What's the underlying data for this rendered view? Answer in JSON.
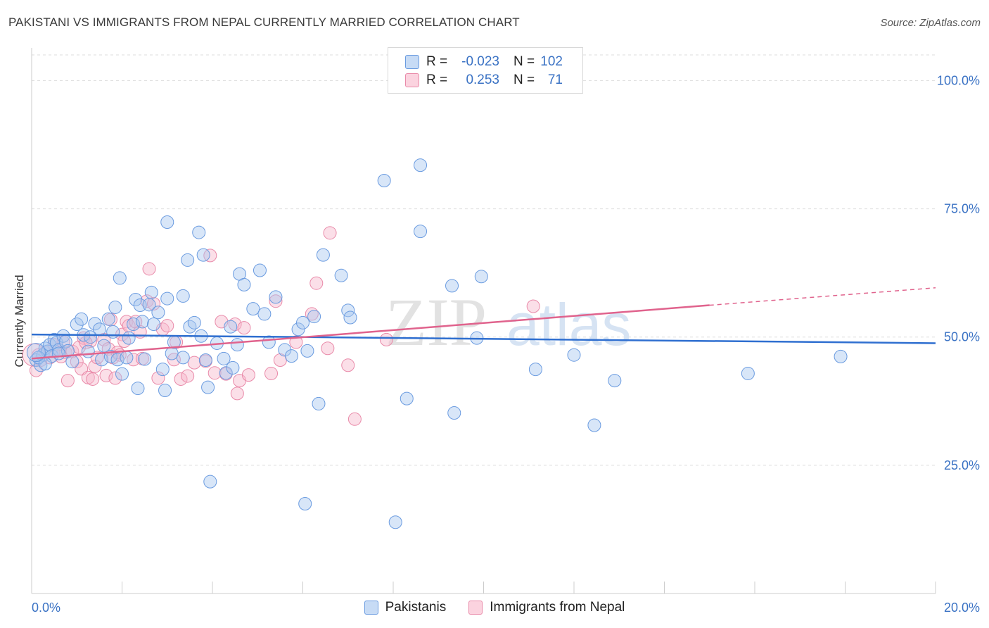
{
  "title": "PAKISTANI VS IMMIGRANTS FROM NEPAL CURRENTLY MARRIED CORRELATION CHART",
  "source": "Source: ZipAtlas.com",
  "watermark": {
    "zip": "ZIP",
    "atlas": "atlas"
  },
  "legend": {
    "rows": [
      {
        "r_label": "R =",
        "r_value": "-0.023",
        "n_label": "N =",
        "n_value": "102"
      },
      {
        "r_label": "R =",
        "r_value": "0.253",
        "n_label": "N =",
        "n_value": "71"
      }
    ]
  },
  "colors": {
    "blue_fill": "#a9c8f0",
    "blue_stroke": "#6a9be0",
    "blue_line": "#2f6fd0",
    "pink_fill": "#f7b9cc",
    "pink_stroke": "#e98aa9",
    "pink_line": "#e0638d",
    "axis_text": "#3a72c4",
    "grid": "#dddddd"
  },
  "chart_data": {
    "type": "scatter",
    "title": "PAKISTANI VS IMMIGRANTS FROM NEPAL CURRENTLY MARRIED CORRELATION CHART",
    "xlabel": "",
    "ylabel": "Currently Married",
    "xlim": [
      0,
      20
    ],
    "ylim": [
      0,
      105
    ],
    "x_tick_labels": [
      "0.0%",
      "20.0%"
    ],
    "y_ticks": [
      25,
      50,
      75,
      100
    ],
    "y_tick_labels": [
      "25.0%",
      "50.0%",
      "75.0%",
      "100.0%"
    ],
    "grid": true,
    "legend_position": "top-center",
    "series": [
      {
        "name": "Pakistanis",
        "color": "#a9c8f0",
        "trend": {
          "x": [
            0,
            20
          ],
          "y": [
            50.5,
            48.8
          ]
        },
        "points": [
          [
            0.1,
            45.5
          ],
          [
            0.2,
            44.5
          ],
          [
            0.25,
            46.5
          ],
          [
            0.3,
            47.8
          ],
          [
            0.35,
            47.2
          ],
          [
            0.4,
            48.5
          ],
          [
            0.45,
            46.3
          ],
          [
            0.5,
            49.5
          ],
          [
            0.55,
            48.9
          ],
          [
            0.6,
            47.5
          ],
          [
            0.7,
            50.2
          ],
          [
            0.75,
            49.1
          ],
          [
            0.8,
            47.3
          ],
          [
            0.9,
            45.2
          ],
          [
            1.0,
            52.5
          ],
          [
            1.1,
            53.5
          ],
          [
            1.15,
            50.4
          ],
          [
            1.25,
            47.2
          ],
          [
            1.4,
            52.6
          ],
          [
            1.5,
            51.5
          ],
          [
            1.55,
            45.6
          ],
          [
            1.6,
            48.3
          ],
          [
            1.7,
            53.5
          ],
          [
            1.75,
            46.2
          ],
          [
            1.85,
            55.8
          ],
          [
            1.9,
            45.6
          ],
          [
            1.95,
            61.5
          ],
          [
            2.0,
            42.8
          ],
          [
            2.1,
            46.0
          ],
          [
            2.15,
            49.8
          ],
          [
            2.25,
            52.5
          ],
          [
            2.3,
            57.3
          ],
          [
            2.4,
            56.2
          ],
          [
            2.35,
            40.0
          ],
          [
            2.45,
            53.0
          ],
          [
            2.5,
            45.7
          ],
          [
            2.6,
            56.3
          ],
          [
            2.65,
            58.7
          ],
          [
            2.7,
            52.5
          ],
          [
            2.8,
            54.8
          ],
          [
            2.9,
            43.7
          ],
          [
            2.95,
            39.6
          ],
          [
            3.0,
            72.4
          ],
          [
            3.0,
            57.5
          ],
          [
            3.1,
            46.8
          ],
          [
            3.15,
            49.0
          ],
          [
            3.35,
            58.0
          ],
          [
            3.45,
            65.0
          ],
          [
            3.5,
            52.0
          ],
          [
            3.6,
            52.8
          ],
          [
            3.7,
            70.4
          ],
          [
            3.75,
            50.2
          ],
          [
            3.8,
            66.0
          ],
          [
            3.85,
            45.5
          ],
          [
            3.9,
            40.2
          ],
          [
            3.95,
            21.8
          ],
          [
            4.1,
            48.8
          ],
          [
            4.25,
            45.8
          ],
          [
            4.3,
            43.0
          ],
          [
            4.4,
            52.0
          ],
          [
            4.45,
            44.0
          ],
          [
            4.55,
            48.5
          ],
          [
            4.6,
            62.3
          ],
          [
            4.7,
            60.2
          ],
          [
            4.9,
            55.5
          ],
          [
            5.05,
            63.0
          ],
          [
            5.15,
            54.5
          ],
          [
            5.4,
            57.8
          ],
          [
            5.6,
            47.5
          ],
          [
            5.75,
            46.3
          ],
          [
            5.9,
            51.5
          ],
          [
            6.0,
            52.8
          ],
          [
            6.05,
            17.5
          ],
          [
            6.1,
            47.3
          ],
          [
            6.25,
            54.0
          ],
          [
            6.35,
            37.0
          ],
          [
            6.45,
            66.0
          ],
          [
            6.85,
            62.0
          ],
          [
            7.0,
            55.2
          ],
          [
            7.05,
            53.8
          ],
          [
            7.8,
            80.5
          ],
          [
            8.05,
            13.9
          ],
          [
            8.3,
            38.0
          ],
          [
            8.6,
            83.5
          ],
          [
            8.6,
            70.6
          ],
          [
            9.3,
            60.0
          ],
          [
            9.35,
            35.2
          ],
          [
            9.85,
            49.8
          ],
          [
            9.95,
            61.8
          ],
          [
            11.15,
            43.7
          ],
          [
            12.0,
            46.5
          ],
          [
            12.45,
            32.8
          ],
          [
            12.9,
            41.5
          ],
          [
            15.85,
            42.9
          ],
          [
            17.9,
            46.2
          ],
          [
            0.15,
            46.0
          ],
          [
            0.3,
            44.8
          ],
          [
            0.6,
            46.8
          ],
          [
            1.3,
            50.0
          ],
          [
            1.8,
            51.0
          ],
          [
            3.35,
            46.0
          ],
          [
            5.25,
            49.0
          ]
        ]
      },
      {
        "name": "Immigrants from Nepal",
        "color": "#f7b9cc",
        "trend": {
          "x": [
            0,
            15
          ],
          "y": [
            45.8,
            56.2
          ]
        },
        "trend_extension": {
          "x": [
            15,
            20
          ],
          "y": [
            56.2,
            59.6
          ]
        },
        "points": [
          [
            0.1,
            43.5
          ],
          [
            0.2,
            45.5
          ],
          [
            0.3,
            47.0
          ],
          [
            0.4,
            46.0
          ],
          [
            0.5,
            48.5
          ],
          [
            0.6,
            47.5
          ],
          [
            0.7,
            49.0
          ],
          [
            0.75,
            47.0
          ],
          [
            0.8,
            41.5
          ],
          [
            0.9,
            47.2
          ],
          [
            1.0,
            45.2
          ],
          [
            1.05,
            48.0
          ],
          [
            1.1,
            43.8
          ],
          [
            1.15,
            49.8
          ],
          [
            1.25,
            42.1
          ],
          [
            1.3,
            49.2
          ],
          [
            1.35,
            41.8
          ],
          [
            1.4,
            44.3
          ],
          [
            1.45,
            46.0
          ],
          [
            1.6,
            49.5
          ],
          [
            1.65,
            42.5
          ],
          [
            1.7,
            47.7
          ],
          [
            1.75,
            53.4
          ],
          [
            1.8,
            46.0
          ],
          [
            1.85,
            42.0
          ],
          [
            1.9,
            47.0
          ],
          [
            1.95,
            46.5
          ],
          [
            2.0,
            50.5
          ],
          [
            2.1,
            53.0
          ],
          [
            2.15,
            52.2
          ],
          [
            2.25,
            45.6
          ],
          [
            2.3,
            53.0
          ],
          [
            2.4,
            51.0
          ],
          [
            2.45,
            45.8
          ],
          [
            2.55,
            57.0
          ],
          [
            2.6,
            63.3
          ],
          [
            2.7,
            56.5
          ],
          [
            2.8,
            42.0
          ],
          [
            2.9,
            51.5
          ],
          [
            3.0,
            52.2
          ],
          [
            3.15,
            45.6
          ],
          [
            3.2,
            49.0
          ],
          [
            3.3,
            41.8
          ],
          [
            3.45,
            42.4
          ],
          [
            3.85,
            45.3
          ],
          [
            3.95,
            65.9
          ],
          [
            4.05,
            43.0
          ],
          [
            4.2,
            53.0
          ],
          [
            4.3,
            42.8
          ],
          [
            4.5,
            52.5
          ],
          [
            4.55,
            39.0
          ],
          [
            4.6,
            41.5
          ],
          [
            4.7,
            51.8
          ],
          [
            4.8,
            42.6
          ],
          [
            5.3,
            42.9
          ],
          [
            5.4,
            57.0
          ],
          [
            5.5,
            45.5
          ],
          [
            5.85,
            49.0
          ],
          [
            6.2,
            54.5
          ],
          [
            6.3,
            60.5
          ],
          [
            6.55,
            47.8
          ],
          [
            6.6,
            70.3
          ],
          [
            7.0,
            44.5
          ],
          [
            7.15,
            34.0
          ],
          [
            7.85,
            49.5
          ],
          [
            11.1,
            56.0
          ],
          [
            0.15,
            46.5
          ],
          [
            0.65,
            46.2
          ],
          [
            1.2,
            48.9
          ],
          [
            2.05,
            49.2
          ],
          [
            3.6,
            45.0
          ]
        ]
      }
    ]
  }
}
